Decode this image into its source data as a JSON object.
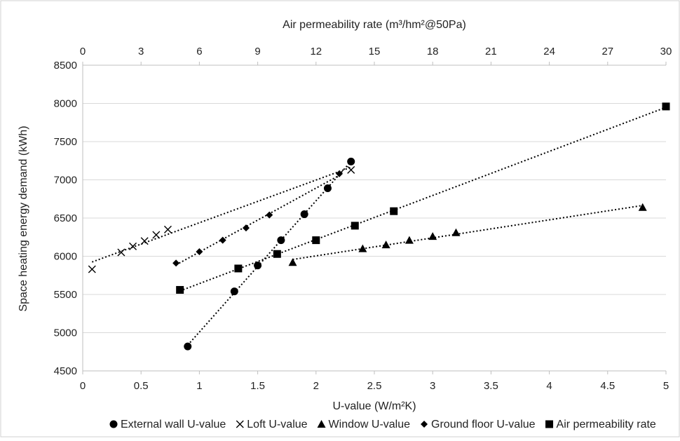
{
  "chart_data": {
    "type": "scatter",
    "title": "",
    "xlabel": "U-value (W/m²K)",
    "x2label": "Air permeability rate (m³/hm²@50Pa)",
    "ylabel": "Space heating energy demand (kWh)",
    "xlim": [
      0,
      5
    ],
    "x2lim": [
      0,
      30
    ],
    "ylim": [
      4500,
      8500
    ],
    "xticks": [
      "0",
      "0.5",
      "1",
      "1.5",
      "2",
      "2.5",
      "3",
      "3.5",
      "4",
      "4.5",
      "5"
    ],
    "x2ticks": [
      "0",
      "3",
      "6",
      "9",
      "12",
      "15",
      "18",
      "21",
      "24",
      "27",
      "30"
    ],
    "yticks": [
      "4500",
      "5000",
      "5500",
      "6000",
      "6500",
      "7000",
      "7500",
      "8000",
      "8500"
    ],
    "grid": "horizontal",
    "legend_position": "bottom",
    "trendlines": "linear, dotted",
    "series": [
      {
        "name": "External wall U-value",
        "marker": "circle",
        "axis": "bottom",
        "points": [
          [
            0.9,
            4820
          ],
          [
            1.3,
            5540
          ],
          [
            1.5,
            5880
          ],
          [
            1.7,
            6210
          ],
          [
            1.9,
            6550
          ],
          [
            2.1,
            6890
          ],
          [
            2.3,
            7240
          ]
        ]
      },
      {
        "name": "Loft U-value",
        "marker": "x",
        "axis": "bottom",
        "points": [
          [
            0.08,
            5830
          ],
          [
            0.33,
            6050
          ],
          [
            0.43,
            6130
          ],
          [
            0.53,
            6200
          ],
          [
            0.63,
            6280
          ],
          [
            0.73,
            6350
          ],
          [
            2.3,
            7130
          ]
        ]
      },
      {
        "name": "Window U-value",
        "marker": "triangle",
        "axis": "bottom",
        "points": [
          [
            1.8,
            5920
          ],
          [
            2.4,
            6100
          ],
          [
            2.6,
            6150
          ],
          [
            2.8,
            6210
          ],
          [
            3.0,
            6260
          ],
          [
            3.2,
            6310
          ],
          [
            4.8,
            6640
          ]
        ]
      },
      {
        "name": "Ground floor U-value",
        "marker": "diamond",
        "axis": "bottom",
        "points": [
          [
            0.8,
            5910
          ],
          [
            1.0,
            6060
          ],
          [
            1.2,
            6210
          ],
          [
            1.4,
            6370
          ],
          [
            1.6,
            6540
          ],
          [
            2.2,
            7080
          ]
        ]
      },
      {
        "name": "Air permeability rate",
        "marker": "square",
        "axis": "top",
        "points": [
          [
            5,
            5560
          ],
          [
            8,
            5840
          ],
          [
            10,
            6030
          ],
          [
            12,
            6210
          ],
          [
            14,
            6400
          ],
          [
            16,
            6590
          ],
          [
            30,
            7960
          ]
        ]
      }
    ]
  },
  "colors": {
    "marker": "#000000",
    "grid": "#d9d9d9",
    "axis": "#bfbfbf",
    "border": "#d0d0d0"
  }
}
